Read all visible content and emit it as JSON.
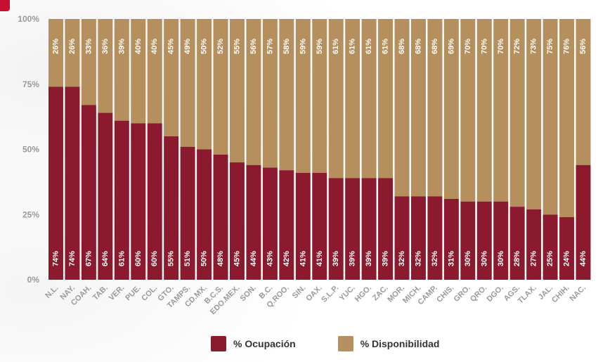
{
  "chart_data": {
    "type": "bar",
    "stacked": true,
    "categories": [
      "N.L.",
      "NAY.",
      "COAH.",
      "TAB.",
      "VER.",
      "PUE.",
      "COL.",
      "GTO.",
      "TAMPS.",
      "CD.MX.",
      "B.C.S.",
      "EDO.MEX.",
      "SON.",
      "B.C.",
      "Q.ROO.",
      "SIN.",
      "OAX.",
      "S.L.P.",
      "YUC.",
      "HGO.",
      "ZAC.",
      "MOR.",
      "MICH.",
      "CAMP.",
      "CHIS.",
      "GRO.",
      "QRO.",
      "DGO.",
      "AGS.",
      "TLAX.",
      "JAL.",
      "CHIH.",
      "NAC."
    ],
    "series": [
      {
        "name": "% Ocupación",
        "values": [
          74,
          74,
          67,
          64,
          61,
          60,
          60,
          55,
          51,
          50,
          48,
          45,
          44,
          43,
          42,
          41,
          41,
          39,
          39,
          39,
          39,
          32,
          32,
          32,
          31,
          30,
          30,
          30,
          28,
          27,
          25,
          24,
          44
        ]
      },
      {
        "name": "% Disponibilidad",
        "values": [
          26,
          26,
          33,
          36,
          39,
          40,
          40,
          45,
          49,
          50,
          52,
          55,
          56,
          57,
          58,
          59,
          59,
          61,
          61,
          61,
          61,
          68,
          68,
          68,
          69,
          70,
          70,
          70,
          72,
          73,
          75,
          76,
          56
        ]
      }
    ],
    "y_ticks": [
      "0%",
      "25%",
      "50%",
      "75%",
      "100%"
    ],
    "ylim": [
      0,
      100
    ],
    "colors": {
      "ocupacion": "#8b1a2e",
      "disponibilidad": "#b5905e",
      "label": "#ffffff",
      "axis_text": "#9a9a9a"
    },
    "legend_position": "bottom-center",
    "grid": false
  },
  "legend": {
    "ocupacion": "% Ocupación",
    "disponibilidad": "% Disponibilidad"
  }
}
